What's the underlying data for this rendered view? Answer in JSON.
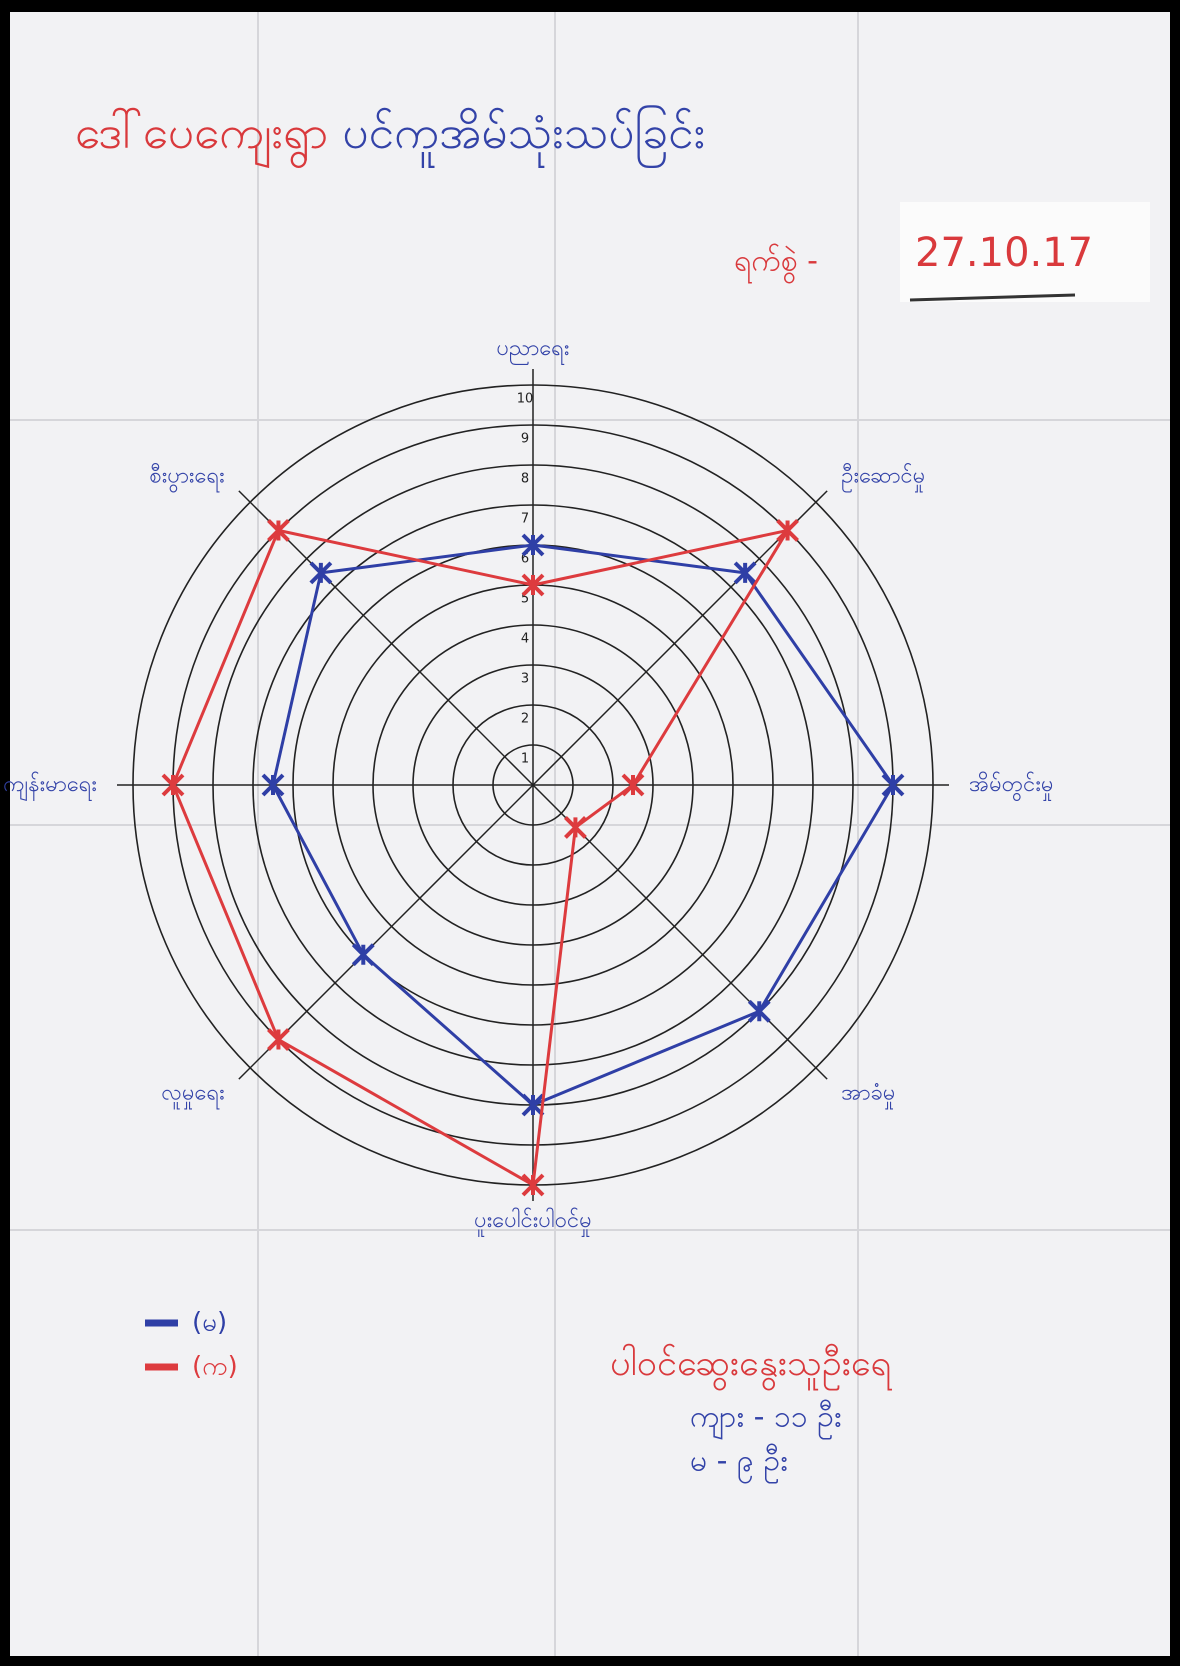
{
  "chart_data": {
    "type": "radar",
    "title": [
      "ဒေါ်ပေကျေးရွာ",
      "ပင်ကူအိမ်သုံးသပ်ခြင်း"
    ],
    "title_colors": [
      "#d9393c",
      "#3343a8"
    ],
    "date_label": "ရက်စွဲ -",
    "date": "27.10.17",
    "categories": [
      "ပညာရေး",
      "ဦးဆောင်မှု",
      "အိမ်တွင်းမှု",
      "အာခံမှု",
      "ပူးပေါင်းပါဝင်မှု",
      "လူမှုရေး",
      "ကျန်းမာရေး",
      "စီးပွားရေး"
    ],
    "series": [
      {
        "name": "(မ)",
        "color": "#2f3fa6",
        "values": [
          6,
          7.5,
          9,
          8,
          8,
          6,
          6.5,
          7.5
        ]
      },
      {
        "name": "(က)",
        "color": "#dd3b3e",
        "values": [
          5,
          9,
          2.5,
          1.5,
          10,
          9,
          9,
          9
        ]
      }
    ],
    "rlim": [
      0,
      10
    ],
    "rticks": [
      1,
      2,
      3,
      4,
      5,
      6,
      7,
      8,
      9,
      10
    ],
    "grid": true,
    "note": {
      "title": "ပါဝင်ဆွေးနွေးသူဦးရေ",
      "lines": [
        "ကျား - ၁၁ ဦး",
        "မ - ၉ ဦး"
      ]
    }
  }
}
